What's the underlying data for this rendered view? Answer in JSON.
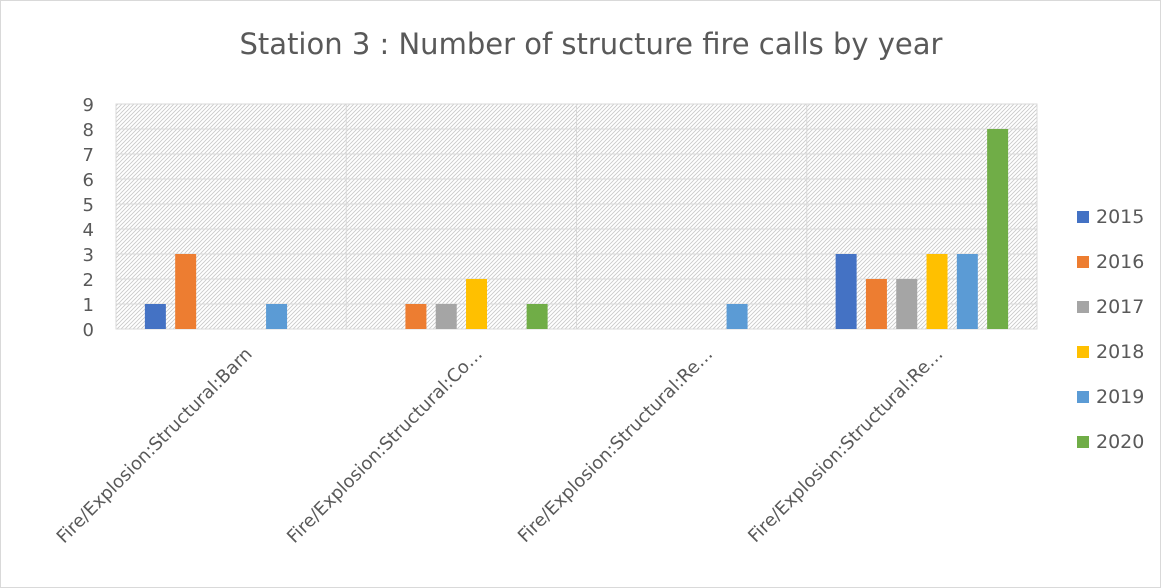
{
  "chart_data": {
    "type": "bar",
    "title": "Station 3 : Number of structure fire calls by year",
    "xlabel": "",
    "ylabel": "",
    "ylim": [
      0,
      9
    ],
    "yticks": [
      0,
      1,
      2,
      3,
      4,
      5,
      6,
      7,
      8,
      9
    ],
    "grid": true,
    "legend_position": "right",
    "categories": [
      "Fire/Explosion:Structural:Barn",
      "Fire/Explosion:Structural:Co…",
      "Fire/Explosion:Structural:Re…",
      "Fire/Explosion:Structural:Re…"
    ],
    "series": [
      {
        "name": "2015",
        "color": "#4472C4",
        "values": [
          1,
          0,
          0,
          3
        ]
      },
      {
        "name": "2016",
        "color": "#ED7D31",
        "values": [
          3,
          1,
          0,
          2
        ]
      },
      {
        "name": "2017",
        "color": "#A5A5A5",
        "values": [
          0,
          1,
          0,
          2
        ]
      },
      {
        "name": "2018",
        "color": "#FFC000",
        "values": [
          0,
          2,
          0,
          3
        ]
      },
      {
        "name": "2019",
        "color": "#5B9BD5",
        "values": [
          1,
          0,
          1,
          3
        ]
      },
      {
        "name": "2020",
        "color": "#70AD47",
        "values": [
          0,
          1,
          0,
          8
        ]
      }
    ]
  }
}
